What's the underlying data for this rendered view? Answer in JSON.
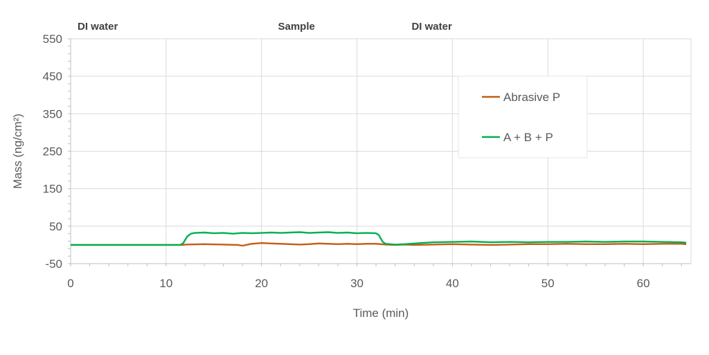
{
  "chart_data": {
    "type": "line",
    "title": "",
    "xlabel": "Time (min)",
    "ylabel": "Mass (ng/cm²)",
    "xlim": [
      0,
      65
    ],
    "ylim": [
      -50,
      550
    ],
    "xticks": [
      "0",
      "10",
      "20",
      "30",
      "40",
      "50",
      "60"
    ],
    "yticks": [
      "550",
      "450",
      "350",
      "250",
      "150",
      "50",
      "-50"
    ],
    "grid": true,
    "legend_position": "right",
    "phase_labels": [
      {
        "text": "DI water",
        "x": 0
      },
      {
        "text": "Sample",
        "x": 21
      },
      {
        "text": "DI water",
        "x": 35
      }
    ],
    "series": [
      {
        "name": "Abrasive P",
        "color": "#c55a11",
        "x": [
          0,
          11.8,
          12,
          14,
          16,
          17.5,
          18,
          19,
          20,
          21,
          22,
          23,
          24,
          25,
          26,
          27,
          28,
          29,
          30,
          31,
          32,
          32.5,
          33,
          34,
          35,
          36,
          38,
          40,
          42,
          44,
          46,
          48,
          50,
          52,
          54,
          56,
          58,
          60,
          62,
          64,
          64.5
        ],
        "y": [
          0,
          0,
          1,
          2,
          1,
          0,
          -2,
          3,
          5,
          4,
          3,
          2,
          1,
          2,
          4,
          3,
          2,
          3,
          2,
          3,
          3,
          2,
          1,
          0,
          1,
          0,
          1,
          2,
          1,
          0,
          1,
          2,
          2,
          3,
          2,
          2,
          3,
          2,
          3,
          3,
          2
        ]
      },
      {
        "name": "A + B + P",
        "color": "#00b050",
        "x": [
          0,
          11.5,
          11.8,
          12.2,
          12.6,
          13,
          14,
          15,
          16,
          17,
          18,
          19,
          20,
          21,
          22,
          23,
          24,
          25,
          26,
          27,
          28,
          29,
          30,
          31,
          32,
          32.3,
          32.7,
          33,
          34,
          35,
          36,
          38,
          40,
          42,
          44,
          46,
          48,
          50,
          52,
          54,
          56,
          58,
          60,
          62,
          64,
          64.5
        ],
        "y": [
          0,
          0,
          5,
          22,
          30,
          32,
          33,
          31,
          32,
          30,
          32,
          31,
          32,
          33,
          32,
          33,
          34,
          32,
          33,
          34,
          32,
          33,
          31,
          32,
          31,
          26,
          8,
          3,
          1,
          2,
          4,
          7,
          8,
          9,
          7,
          8,
          7,
          8,
          8,
          9,
          8,
          9,
          9,
          8,
          7,
          6
        ]
      }
    ]
  }
}
